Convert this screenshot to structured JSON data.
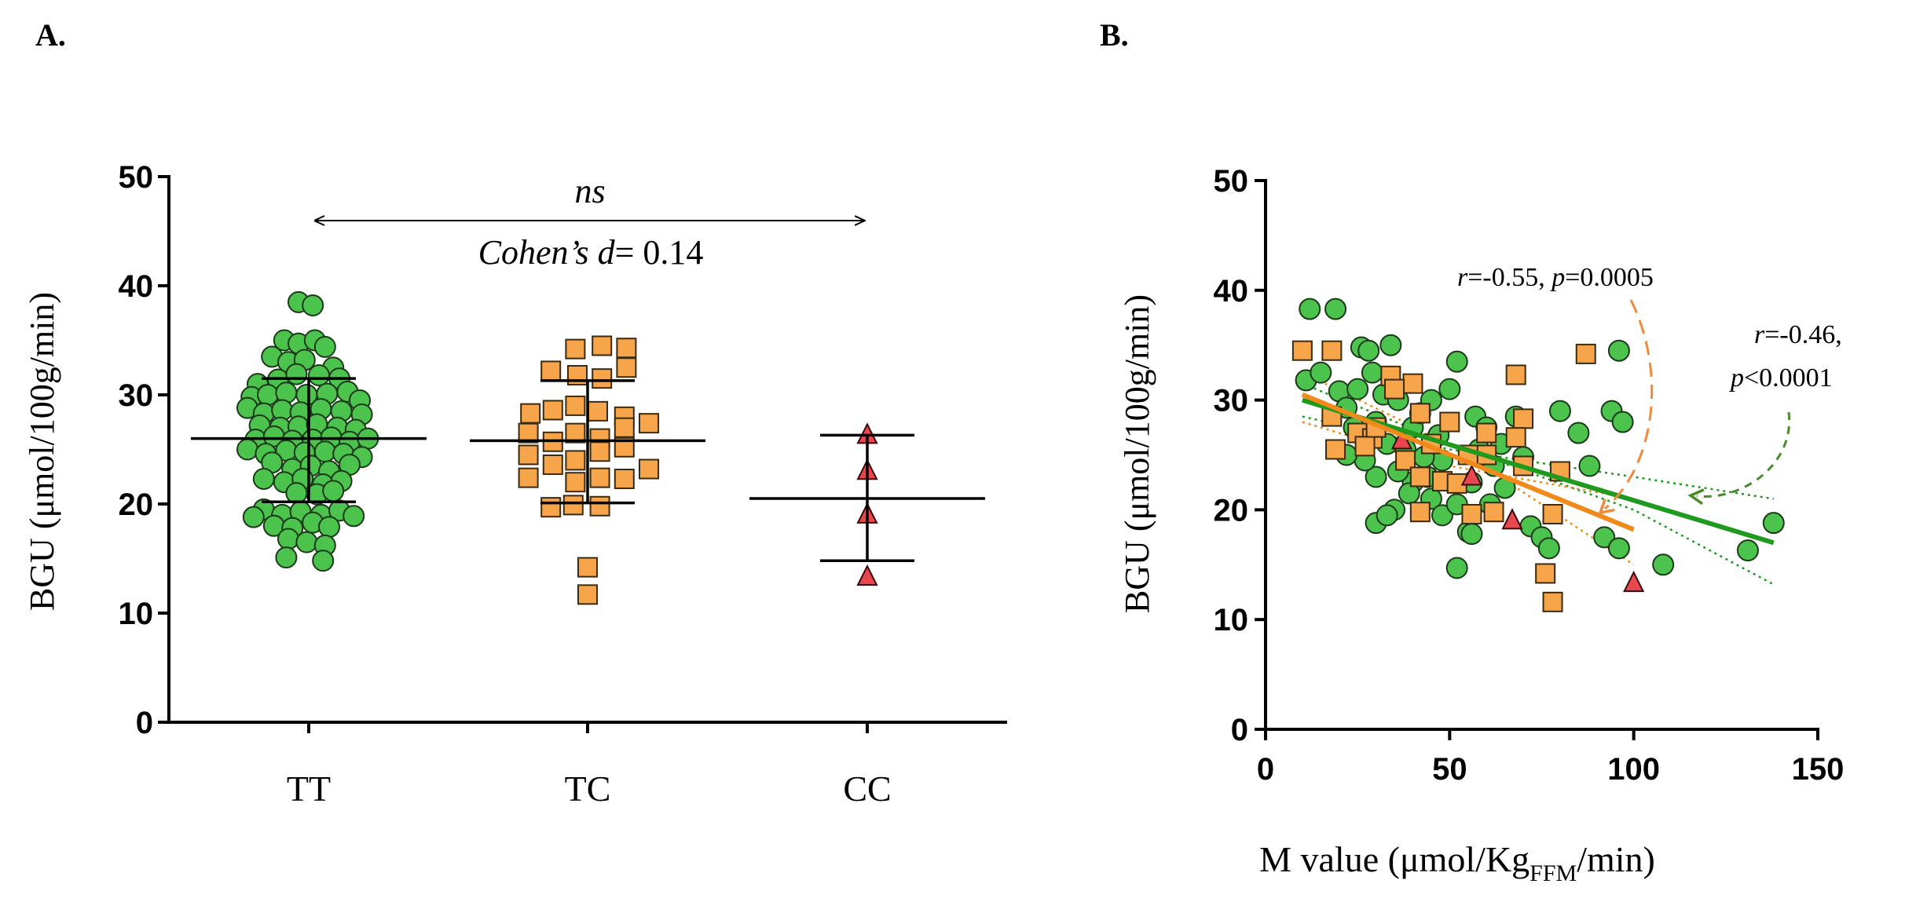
{
  "colors": {
    "tt": "#4cc34c",
    "tc": "#f7a54a",
    "cc": "#e8474f",
    "tt_line": "#1f9a1f",
    "tc_line": "#f08a1a",
    "arrow_tc": "#f08a3a",
    "arrow_tt": "#4a8a2a"
  },
  "chart_data": [
    {
      "panel_label": "A.",
      "type": "scatter",
      "title": "",
      "xlabel": "",
      "ylabel": "BGU (μmol/100g/min)",
      "ylim": [
        0,
        50
      ],
      "yticks": [
        0,
        10,
        20,
        30,
        40,
        50
      ],
      "categories": [
        "TT",
        "TC",
        "CC"
      ],
      "annotation": {
        "ns": "ns",
        "cohen_prefix": "Cohen’s ",
        "cohen_d": "d",
        "cohen_value": "= 0.14"
      },
      "groups": [
        {
          "name": "TT",
          "marker": "circle",
          "mean": 26.0,
          "sd_low": 20.2,
          "sd_high": 31.5,
          "points": [
            [
              -0.05,
              38.5
            ],
            [
              0.02,
              38.2
            ],
            [
              -0.12,
              35.0
            ],
            [
              -0.05,
              34.7
            ],
            [
              0.03,
              35.0
            ],
            [
              0.08,
              34.4
            ],
            [
              -0.18,
              33.5
            ],
            [
              -0.1,
              33.0
            ],
            [
              -0.02,
              33.2
            ],
            [
              0.12,
              32.5
            ],
            [
              -0.25,
              31.0
            ],
            [
              -0.15,
              31.4
            ],
            [
              -0.06,
              31.9
            ],
            [
              0.05,
              31.8
            ],
            [
              0.15,
              31.5
            ],
            [
              -0.28,
              29.8
            ],
            [
              -0.2,
              30.0
            ],
            [
              -0.11,
              30.2
            ],
            [
              -0.01,
              30.0
            ],
            [
              0.09,
              30.1
            ],
            [
              0.19,
              30.3
            ],
            [
              0.25,
              29.5
            ],
            [
              -0.3,
              28.8
            ],
            [
              -0.22,
              28.3
            ],
            [
              -0.13,
              28.6
            ],
            [
              -0.04,
              28.4
            ],
            [
              0.06,
              28.7
            ],
            [
              0.16,
              28.5
            ],
            [
              0.26,
              28.2
            ],
            [
              -0.24,
              27.2
            ],
            [
              -0.14,
              27.0
            ],
            [
              -0.05,
              27.1
            ],
            [
              0.04,
              27.3
            ],
            [
              0.14,
              27.0
            ],
            [
              0.23,
              26.8
            ],
            [
              -0.26,
              25.9
            ],
            [
              -0.17,
              26.2
            ],
            [
              -0.08,
              25.8
            ],
            [
              0.02,
              25.9
            ],
            [
              0.11,
              26.1
            ],
            [
              0.2,
              25.7
            ],
            [
              0.29,
              26.0
            ],
            [
              -0.3,
              25.0
            ],
            [
              -0.21,
              24.6
            ],
            [
              -0.11,
              24.9
            ],
            [
              -0.02,
              24.7
            ],
            [
              0.08,
              24.8
            ],
            [
              0.17,
              24.6
            ],
            [
              0.26,
              24.3
            ],
            [
              -0.18,
              23.8
            ],
            [
              -0.08,
              23.2
            ],
            [
              0.01,
              23.5
            ],
            [
              0.1,
              23.0
            ],
            [
              0.2,
              23.6
            ],
            [
              -0.22,
              22.3
            ],
            [
              -0.12,
              22.0
            ],
            [
              -0.03,
              22.3
            ],
            [
              0.07,
              21.8
            ],
            [
              0.16,
              22.1
            ],
            [
              -0.06,
              21.0
            ],
            [
              0.04,
              20.9
            ],
            [
              0.12,
              21.2
            ],
            [
              -0.22,
              19.5
            ],
            [
              -0.13,
              19.0
            ],
            [
              -0.04,
              19.3
            ],
            [
              0.06,
              19.0
            ],
            [
              0.15,
              19.4
            ],
            [
              0.22,
              18.9
            ],
            [
              -0.27,
              18.8
            ],
            [
              -0.17,
              18.0
            ],
            [
              -0.08,
              17.8
            ],
            [
              0.02,
              18.3
            ],
            [
              0.1,
              17.9
            ],
            [
              -0.1,
              16.8
            ],
            [
              -0.01,
              16.5
            ],
            [
              0.08,
              16.2
            ],
            [
              -0.11,
              15.1
            ],
            [
              0.07,
              14.8
            ]
          ]
        },
        {
          "name": "TC",
          "marker": "square",
          "mean": 25.8,
          "sd_low": 20.1,
          "sd_high": 31.3,
          "points": [
            [
              -0.06,
              34.2
            ],
            [
              0.07,
              34.5
            ],
            [
              0.19,
              34.3
            ],
            [
              -0.18,
              32.2
            ],
            [
              -0.05,
              31.8
            ],
            [
              0.07,
              31.5
            ],
            [
              0.19,
              32.5
            ],
            [
              -0.28,
              28.3
            ],
            [
              -0.17,
              28.6
            ],
            [
              -0.06,
              29.0
            ],
            [
              0.05,
              28.5
            ],
            [
              0.18,
              28.0
            ],
            [
              0.3,
              27.4
            ],
            [
              -0.29,
              26.5
            ],
            [
              -0.17,
              25.7
            ],
            [
              -0.06,
              26.5
            ],
            [
              0.06,
              26.0
            ],
            [
              0.18,
              27.0
            ],
            [
              -0.29,
              24.5
            ],
            [
              -0.17,
              23.6
            ],
            [
              -0.06,
              24.0
            ],
            [
              0.06,
              24.8
            ],
            [
              0.18,
              25.2
            ],
            [
              0.3,
              23.2
            ],
            [
              -0.29,
              22.4
            ],
            [
              -0.06,
              22.0
            ],
            [
              0.06,
              22.4
            ],
            [
              0.18,
              22.3
            ],
            [
              -0.18,
              19.7
            ],
            [
              -0.07,
              19.9
            ],
            [
              0.06,
              19.8
            ],
            [
              0.0,
              14.2
            ],
            [
              0.0,
              11.7
            ]
          ]
        },
        {
          "name": "CC",
          "marker": "triangle",
          "mean": 20.5,
          "sd_low": 14.8,
          "sd_high": 26.3,
          "points": [
            [
              0.0,
              26.3
            ],
            [
              0.0,
              23.0
            ],
            [
              0.0,
              19.0
            ],
            [
              0.0,
              13.3
            ]
          ]
        }
      ]
    },
    {
      "panel_label": "B.",
      "type": "scatter",
      "title": "",
      "xlabel_main": "M value  (μmol/Kg",
      "xlabel_sub": "FFM",
      "xlabel_end": "/min)",
      "ylabel": "BGU (μmol/100g/min)",
      "xlim": [
        0,
        150
      ],
      "ylim": [
        0,
        50
      ],
      "xticks": [
        0,
        50,
        100,
        150
      ],
      "yticks": [
        0,
        10,
        20,
        30,
        40,
        50
      ],
      "annotations": {
        "tc_r_label": "r",
        "tc_r_value": "=-0.55, ",
        "tc_p_label": "p",
        "tc_p_value": "=0.0005",
        "tt_r_label": "r",
        "tt_r_value": "=-0.46,",
        "tt_p_label": "p",
        "tt_p_value": "<0.0001"
      },
      "series": [
        {
          "name": "TT",
          "marker": "circle",
          "regression": {
            "x": [
              10,
              138
            ],
            "y": [
              30.0,
              17.0
            ]
          },
          "ci_upper": {
            "x": [
              10,
              50,
              100,
              138
            ],
            "y": [
              28.5,
              25.5,
              23.0,
              21.0
            ]
          },
          "ci_lower": {
            "x": [
              10,
              50,
              100,
              138
            ],
            "y": [
              31.5,
              26.0,
              20.0,
              13.2
            ]
          },
          "points": [
            [
              12,
              38.3
            ],
            [
              19,
              38.3
            ],
            [
              11,
              31.8
            ],
            [
              15,
              32.5
            ],
            [
              20,
              30.8
            ],
            [
              22,
              29.3
            ],
            [
              25,
              31.0
            ],
            [
              26,
              34.8
            ],
            [
              28,
              34.5
            ],
            [
              34,
              35.0
            ],
            [
              29,
              32.5
            ],
            [
              32,
              30.5
            ],
            [
              36,
              30.0
            ],
            [
              30,
              28.0
            ],
            [
              24,
              27.5
            ],
            [
              33,
              26.0
            ],
            [
              38,
              25.5
            ],
            [
              40,
              27.5
            ],
            [
              42,
              28.8
            ],
            [
              45,
              30.0
            ],
            [
              47,
              26.8
            ],
            [
              50,
              31.0
            ],
            [
              52,
              33.5
            ],
            [
              48,
              24.5
            ],
            [
              44,
              23.0
            ],
            [
              40,
              22.5
            ],
            [
              36,
              23.5
            ],
            [
              30,
              23.0
            ],
            [
              27,
              24.5
            ],
            [
              22,
              25.0
            ],
            [
              35,
              20.0
            ],
            [
              30,
              18.8
            ],
            [
              33,
              19.5
            ],
            [
              45,
              21.0
            ],
            [
              48,
              19.5
            ],
            [
              52,
              20.5
            ],
            [
              55,
              18.0
            ],
            [
              57,
              28.5
            ],
            [
              60,
              27.5
            ],
            [
              58,
              25.5
            ],
            [
              62,
              24.0
            ],
            [
              65,
              22.0
            ],
            [
              68,
              28.5
            ],
            [
              72,
              18.5
            ],
            [
              75,
              17.5
            ],
            [
              77,
              16.5
            ],
            [
              80,
              29.0
            ],
            [
              85,
              27.0
            ],
            [
              88,
              24.0
            ],
            [
              92,
              17.5
            ],
            [
              96,
              16.5
            ],
            [
              94,
              29.0
            ],
            [
              96,
              34.5
            ],
            [
              97,
              28.0
            ],
            [
              108,
              15.0
            ],
            [
              131,
              16.3
            ],
            [
              138,
              18.8
            ],
            [
              52,
              14.7
            ],
            [
              56,
              17.8
            ],
            [
              61,
              20.5
            ],
            [
              43,
              24.8
            ],
            [
              39,
              21.5
            ],
            [
              56,
              22.5
            ],
            [
              64,
              26.0
            ],
            [
              70,
              24.8
            ]
          ]
        },
        {
          "name": "TC",
          "marker": "square",
          "regression": {
            "x": [
              10,
              100
            ],
            "y": [
              30.5,
              18.2
            ]
          },
          "ci_upper": {
            "x": [
              10,
              50,
              100
            ],
            "y": [
              28.0,
              24.0,
              21.0
            ]
          },
          "ci_lower": {
            "x": [
              10,
              50,
              100
            ],
            "y": [
              32.5,
              26.0,
              15.0
            ]
          },
          "points": [
            [
              10,
              34.5
            ],
            [
              18,
              34.5
            ],
            [
              34,
              32.2
            ],
            [
              40,
              31.5
            ],
            [
              68,
              32.3
            ],
            [
              87,
              34.2
            ],
            [
              35,
              31.0
            ],
            [
              18,
              28.5
            ],
            [
              42,
              28.8
            ],
            [
              70,
              28.3
            ],
            [
              25,
              27.0
            ],
            [
              29,
              26.5
            ],
            [
              68,
              26.6
            ],
            [
              19,
              25.5
            ],
            [
              27,
              25.8
            ],
            [
              38,
              24.5
            ],
            [
              60,
              25.0
            ],
            [
              80,
              23.5
            ],
            [
              42,
              23.0
            ],
            [
              48,
              22.6
            ],
            [
              52,
              22.4
            ],
            [
              42,
              19.8
            ],
            [
              56,
              19.6
            ],
            [
              62,
              19.8
            ],
            [
              78,
              19.6
            ],
            [
              76,
              14.2
            ],
            [
              78,
              11.6
            ],
            [
              70,
              24.0
            ],
            [
              45,
              26.0
            ],
            [
              55,
              25.0
            ],
            [
              60,
              27.0
            ],
            [
              50,
              28.0
            ],
            [
              30,
              27.5
            ]
          ]
        },
        {
          "name": "CC",
          "marker": "triangle",
          "points": [
            [
              37,
              26.3
            ],
            [
              56,
              23.0
            ],
            [
              67,
              19.0
            ],
            [
              100,
              13.3
            ]
          ]
        }
      ]
    }
  ]
}
